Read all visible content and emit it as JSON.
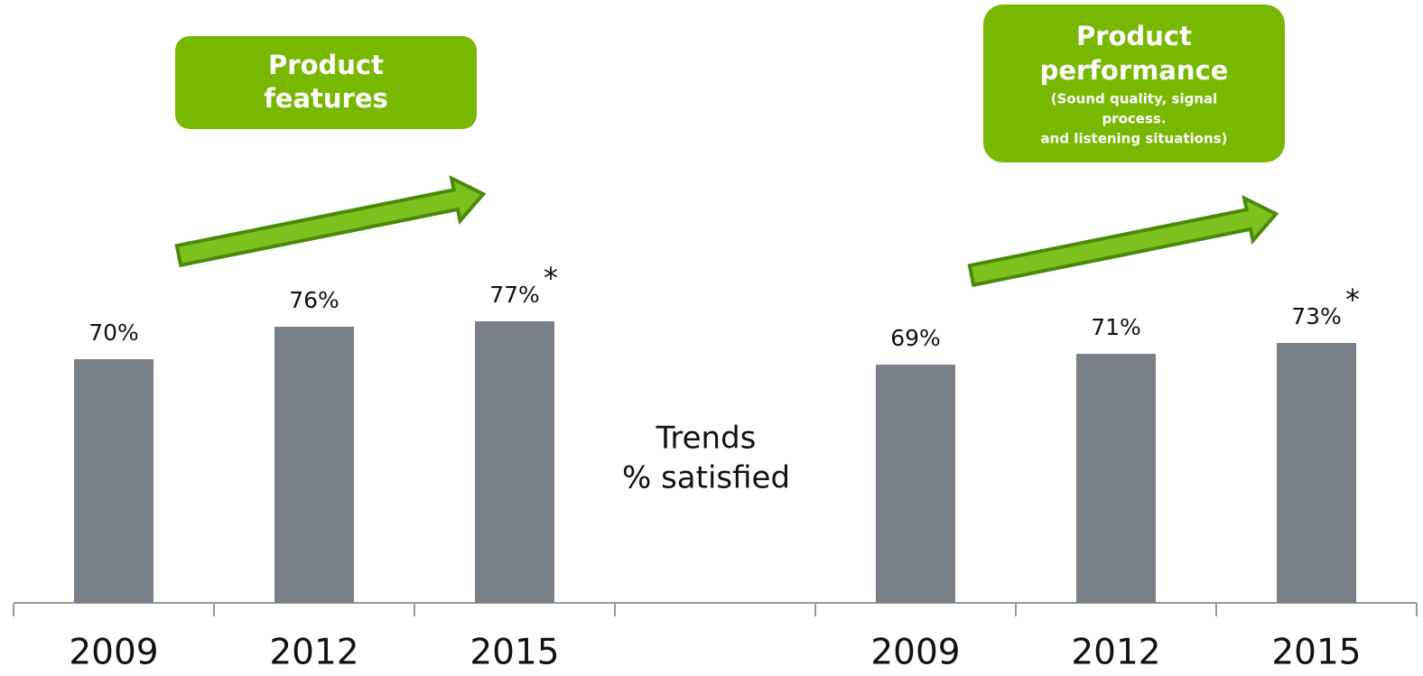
{
  "chart_data": {
    "type": "bar",
    "categories": [
      "2009",
      "2012",
      "2015",
      null,
      "2009",
      "2012",
      "2015"
    ],
    "values": [
      70,
      76,
      77,
      null,
      69,
      71,
      73
    ],
    "value_labels": [
      "70%",
      "76%",
      "77%",
      null,
      "69%",
      "71%",
      "73%"
    ],
    "value_notes": [
      null,
      null,
      "*",
      null,
      null,
      null,
      "*"
    ],
    "color": "#7a8087",
    "ylim": [
      25,
      100
    ],
    "center_label": [
      "Trends",
      "% satisfied"
    ],
    "callouts": [
      {
        "title": [
          "Product",
          "features"
        ]
      },
      {
        "title": [
          "Product",
          "performance"
        ],
        "subtitle": [
          "(Sound quality, signal",
          "process.",
          "and listening situations)"
        ]
      }
    ]
  }
}
